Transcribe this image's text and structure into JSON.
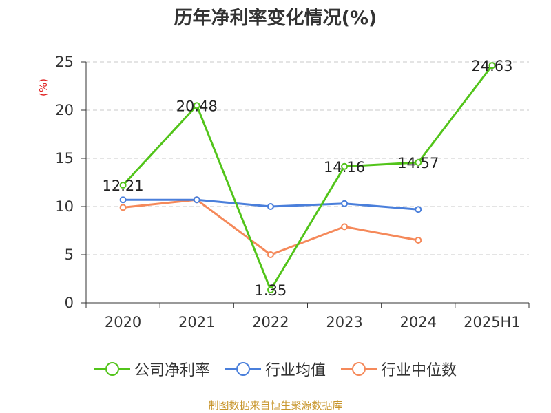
{
  "chart_data": {
    "type": "line",
    "title": "历年净利率变化情况(%)",
    "ylabel": "(%)",
    "xlabel": "",
    "categories": [
      "2020",
      "2021",
      "2022",
      "2023",
      "2024",
      "2025H1"
    ],
    "ylim": [
      0,
      25
    ],
    "yticks": [
      0,
      5,
      10,
      15,
      20,
      25
    ],
    "grid": true,
    "legend_position": "bottom",
    "series": [
      {
        "name": "公司净利率",
        "color": "#52c41a",
        "values": [
          12.21,
          20.48,
          1.35,
          14.16,
          14.57,
          24.63
        ],
        "labels": [
          "12.21",
          "20.48",
          "1.35",
          "14.16",
          "14.57",
          "24.63"
        ]
      },
      {
        "name": "行业均值",
        "color": "#4a7fdb",
        "values": [
          10.7,
          10.7,
          10.0,
          10.3,
          9.7,
          null
        ]
      },
      {
        "name": "行业中位数",
        "color": "#f5895a",
        "values": [
          9.9,
          10.7,
          5.0,
          7.9,
          6.5,
          null
        ]
      }
    ]
  },
  "source": {
    "text": "制图数据来自恒生聚源数据库",
    "color": "#c8962d"
  },
  "ylabel_color": "#e01e1e"
}
